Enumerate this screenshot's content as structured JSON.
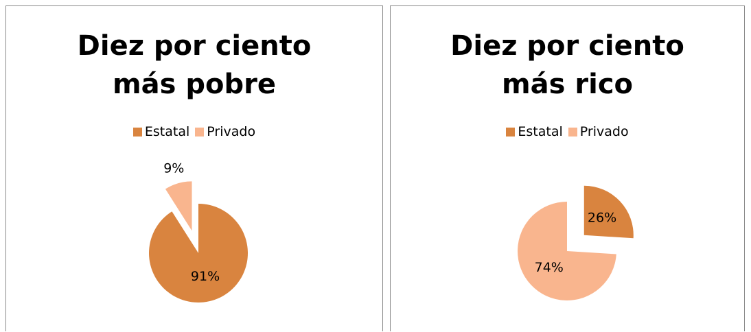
{
  "chart_data": [
    {
      "type": "pie",
      "title": "Diez por ciento más pobre",
      "categories": [
        "Estatal",
        "Privado"
      ],
      "values": [
        91,
        9
      ],
      "value_labels": [
        "91%",
        "9%"
      ],
      "colors": [
        "#d9843f",
        "#f9b58e"
      ]
    },
    {
      "type": "pie",
      "title": "Diez por ciento más rico",
      "categories": [
        "Estatal",
        "Privado"
      ],
      "values": [
        26,
        74
      ],
      "value_labels": [
        "26%",
        "74%"
      ],
      "colors": [
        "#d9843f",
        "#f9b58e"
      ]
    }
  ]
}
